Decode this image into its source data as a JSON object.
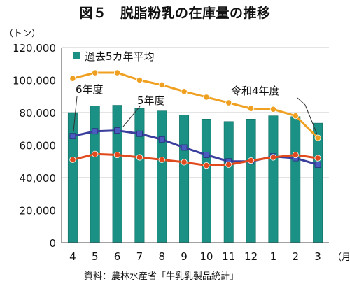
{
  "chart_data": {
    "type": "bar+line",
    "title": "図５　脱脂粉乳の在庫量の推移",
    "y_unit": "（トン）",
    "x_unit": "（月）",
    "source": "資料：農林水産省「牛乳乳製品統計」",
    "ylim": [
      0,
      120000
    ],
    "yticks": [
      0,
      20000,
      40000,
      60000,
      80000,
      100000,
      120000
    ],
    "ytick_labels": [
      "0",
      "20,000",
      "40,000",
      "60,000",
      "80,000",
      "100,000",
      "120,000"
    ],
    "categories": [
      "4",
      "5",
      "6",
      "7",
      "8",
      "9",
      "10",
      "11",
      "12",
      "1",
      "2",
      "3"
    ],
    "grid": true,
    "bar_series": {
      "name": "過去5カ年平均",
      "color": "#1a9184",
      "values": [
        80000,
        84000,
        84500,
        82500,
        81000,
        78500,
        76000,
        74500,
        76000,
        78000,
        77500,
        73500
      ]
    },
    "line_series": [
      {
        "name": "令和4年度",
        "color": "#f0a020",
        "marker": "circle",
        "values": [
          101000,
          104500,
          104500,
          100000,
          97000,
          93000,
          89500,
          86000,
          82500,
          82000,
          78000,
          64500
        ]
      },
      {
        "name": "5年度",
        "color": "#3a3e9c",
        "marker": "square",
        "values": [
          65500,
          68500,
          69000,
          67000,
          63500,
          58500,
          54000,
          50000,
          50000,
          53000,
          52000,
          48000
        ]
      },
      {
        "name": "6年度",
        "color": "#e04a1c",
        "marker": "circle",
        "values": [
          51000,
          54500,
          54000,
          52500,
          51000,
          49500,
          47500,
          48000,
          50500,
          52500,
          54000,
          52000
        ]
      }
    ]
  }
}
